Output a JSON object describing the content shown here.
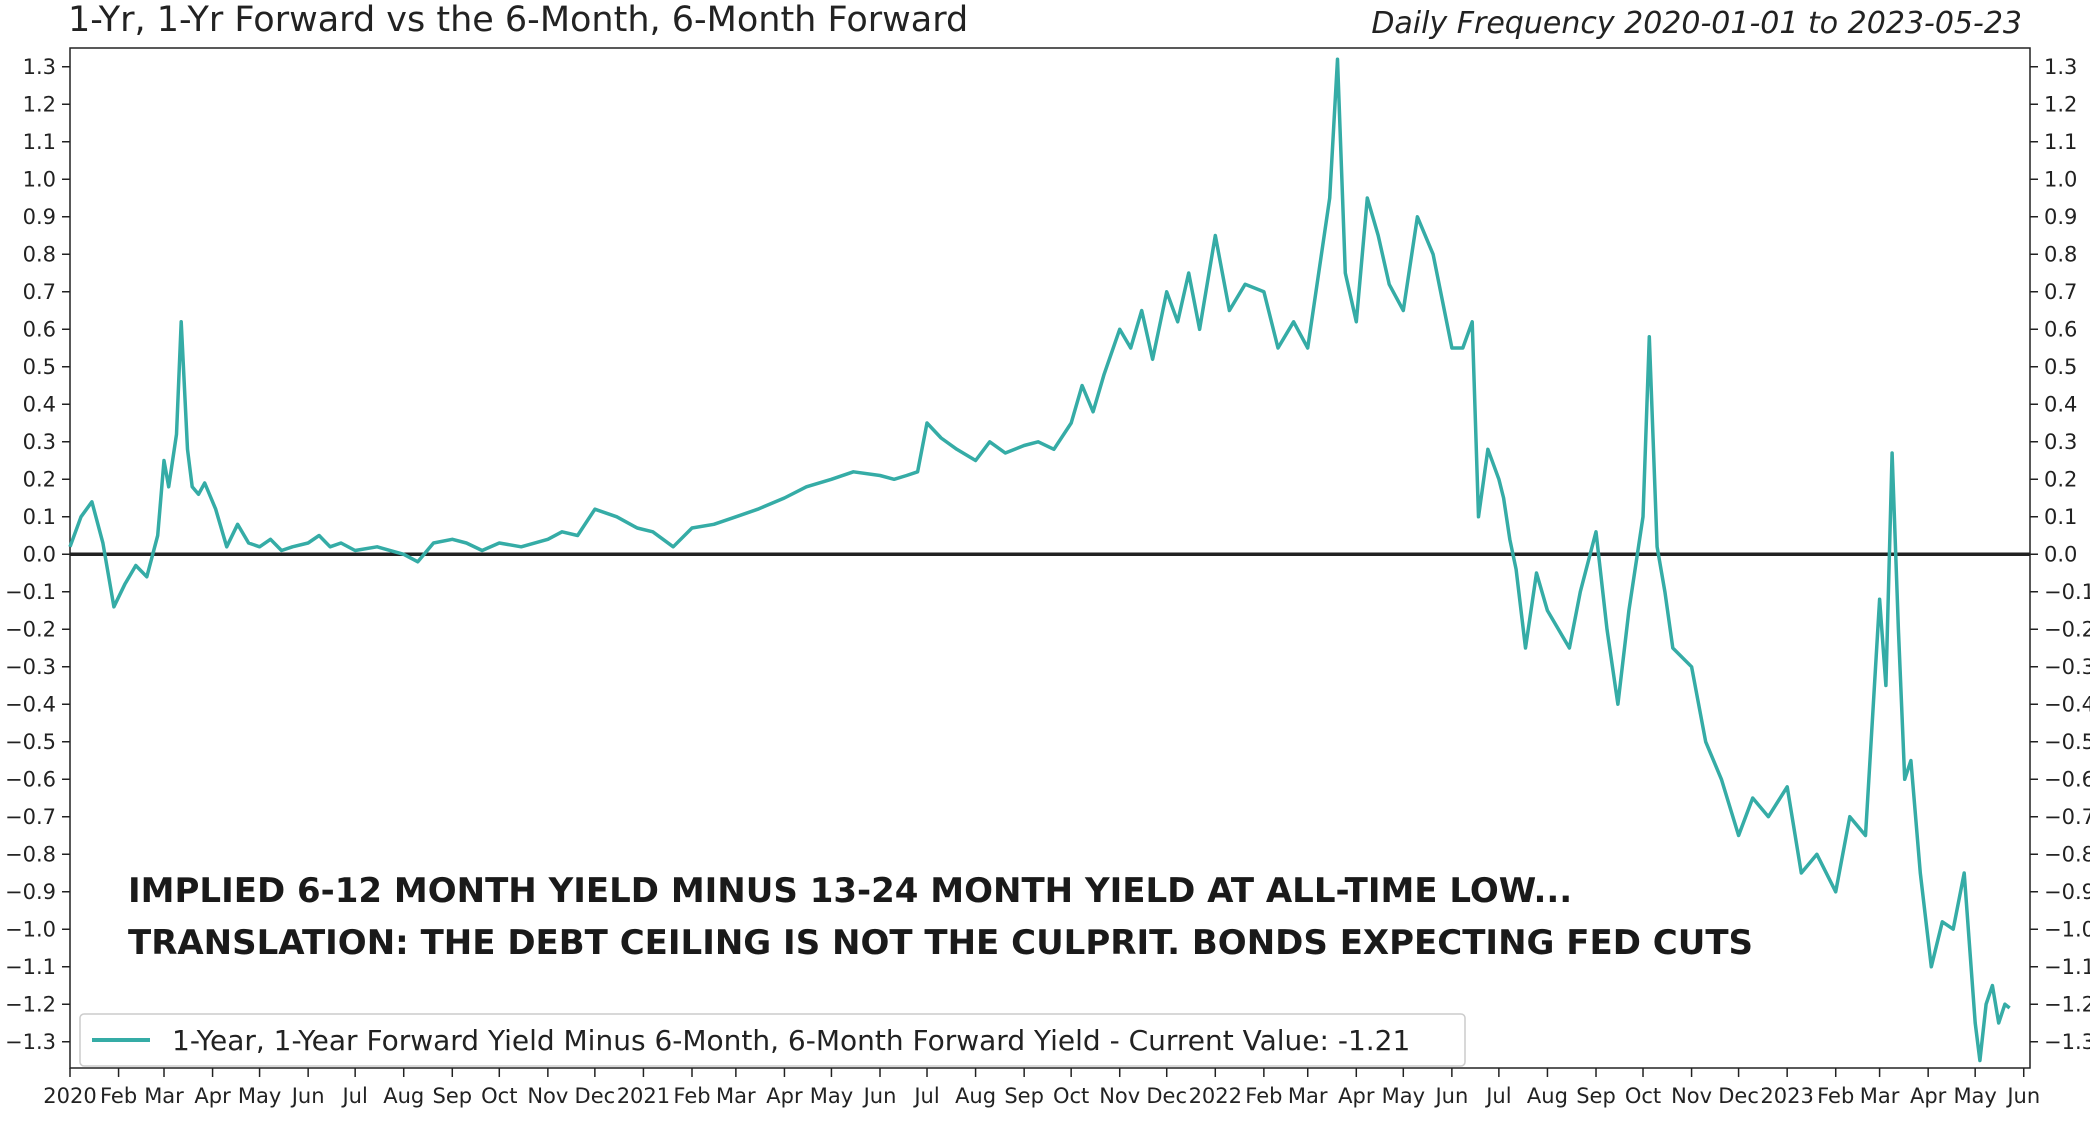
{
  "chart_data": {
    "type": "line",
    "title": "1-Yr, 1-Yr Forward vs the 6-Month, 6-Month Forward",
    "subtitle": "Daily Frequency 2020-01-01 to 2023-05-23",
    "ylim": [
      -1.37,
      1.35
    ],
    "yticks": [
      "1.3",
      "1.2",
      "1.1",
      "1.0",
      "0.9",
      "0.8",
      "0.7",
      "0.6",
      "0.5",
      "0.4",
      "0.3",
      "0.2",
      "0.1",
      "0.0",
      "−0.1",
      "−0.2",
      "−0.3",
      "−0.4",
      "−0.5",
      "−0.6",
      "−0.7",
      "−0.8",
      "−0.9",
      "−1.0",
      "−1.1",
      "−1.2",
      "−1.3"
    ],
    "ytick_values": [
      1.3,
      1.2,
      1.1,
      1.0,
      0.9,
      0.8,
      0.7,
      0.6,
      0.5,
      0.4,
      0.3,
      0.2,
      0.1,
      0.0,
      -0.1,
      -0.2,
      -0.3,
      -0.4,
      -0.5,
      -0.6,
      -0.7,
      -0.8,
      -0.9,
      -1.0,
      -1.1,
      -1.2,
      -1.3
    ],
    "xlim": [
      "2020-01-01",
      "2023-06-05"
    ],
    "xticks": [
      {
        "label": "2020",
        "date": "2020-01-01"
      },
      {
        "label": "Feb",
        "date": "2020-02-01"
      },
      {
        "label": "Mar",
        "date": "2020-03-01"
      },
      {
        "label": "Apr",
        "date": "2020-04-01"
      },
      {
        "label": "May",
        "date": "2020-05-01"
      },
      {
        "label": "Jun",
        "date": "2020-06-01"
      },
      {
        "label": "Jul",
        "date": "2020-07-01"
      },
      {
        "label": "Aug",
        "date": "2020-08-01"
      },
      {
        "label": "Sep",
        "date": "2020-09-01"
      },
      {
        "label": "Oct",
        "date": "2020-10-01"
      },
      {
        "label": "Nov",
        "date": "2020-11-01"
      },
      {
        "label": "Dec",
        "date": "2020-12-01"
      },
      {
        "label": "2021",
        "date": "2021-01-01"
      },
      {
        "label": "Feb",
        "date": "2021-02-01"
      },
      {
        "label": "Mar",
        "date": "2021-03-01"
      },
      {
        "label": "Apr",
        "date": "2021-04-01"
      },
      {
        "label": "May",
        "date": "2021-05-01"
      },
      {
        "label": "Jun",
        "date": "2021-06-01"
      },
      {
        "label": "Jul",
        "date": "2021-07-01"
      },
      {
        "label": "Aug",
        "date": "2021-08-01"
      },
      {
        "label": "Sep",
        "date": "2021-09-01"
      },
      {
        "label": "Oct",
        "date": "2021-10-01"
      },
      {
        "label": "Nov",
        "date": "2021-11-01"
      },
      {
        "label": "Dec",
        "date": "2021-12-01"
      },
      {
        "label": "2022",
        "date": "2022-01-01"
      },
      {
        "label": "Feb",
        "date": "2022-02-01"
      },
      {
        "label": "Mar",
        "date": "2022-03-01"
      },
      {
        "label": "Apr",
        "date": "2022-04-01"
      },
      {
        "label": "May",
        "date": "2022-05-01"
      },
      {
        "label": "Jun",
        "date": "2022-06-01"
      },
      {
        "label": "Jul",
        "date": "2022-07-01"
      },
      {
        "label": "Aug",
        "date": "2022-08-01"
      },
      {
        "label": "Sep",
        "date": "2022-09-01"
      },
      {
        "label": "Oct",
        "date": "2022-10-01"
      },
      {
        "label": "Nov",
        "date": "2022-11-01"
      },
      {
        "label": "Dec",
        "date": "2022-12-01"
      },
      {
        "label": "2023",
        "date": "2023-01-01"
      },
      {
        "label": "Feb",
        "date": "2023-02-01"
      },
      {
        "label": "Mar",
        "date": "2023-03-01"
      },
      {
        "label": "Apr",
        "date": "2023-04-01"
      },
      {
        "label": "May",
        "date": "2023-05-01"
      },
      {
        "label": "Jun",
        "date": "2023-06-01"
      }
    ],
    "grid": false,
    "legend_position": "bottom-left",
    "zero_line": 0.0,
    "annotations": [
      "IMPLIED 6-12 MONTH YIELD MINUS 13-24 MONTH YIELD AT ALL-TIME LOW...",
      "TRANSLATION:  THE DEBT CEILING IS NOT THE CULPRIT.  BONDS EXPECTING FED CUTS"
    ],
    "series": [
      {
        "name": "1-Year, 1-Year Forward Yield Minus 6-Month, 6-Month Forward Yield - Current Value: -1.21",
        "color": "#35aca6",
        "x": [
          "2020-01-01",
          "2020-01-08",
          "2020-01-15",
          "2020-01-22",
          "2020-01-29",
          "2020-02-05",
          "2020-02-12",
          "2020-02-19",
          "2020-02-26",
          "2020-03-01",
          "2020-03-04",
          "2020-03-09",
          "2020-03-12",
          "2020-03-16",
          "2020-03-19",
          "2020-03-23",
          "2020-03-27",
          "2020-04-03",
          "2020-04-10",
          "2020-04-17",
          "2020-04-24",
          "2020-05-01",
          "2020-05-08",
          "2020-05-15",
          "2020-05-22",
          "2020-06-01",
          "2020-06-08",
          "2020-06-15",
          "2020-06-22",
          "2020-07-01",
          "2020-07-15",
          "2020-08-01",
          "2020-08-10",
          "2020-08-20",
          "2020-09-01",
          "2020-09-10",
          "2020-09-20",
          "2020-10-01",
          "2020-10-15",
          "2020-11-01",
          "2020-11-10",
          "2020-11-20",
          "2020-12-01",
          "2020-12-15",
          "2020-12-28",
          "2021-01-07",
          "2021-01-20",
          "2021-02-01",
          "2021-02-15",
          "2021-03-01",
          "2021-03-15",
          "2021-04-01",
          "2021-04-15",
          "2021-05-01",
          "2021-05-15",
          "2021-06-01",
          "2021-06-10",
          "2021-06-18",
          "2021-06-25",
          "2021-07-01",
          "2021-07-10",
          "2021-07-20",
          "2021-08-01",
          "2021-08-10",
          "2021-08-20",
          "2021-09-01",
          "2021-09-10",
          "2021-09-20",
          "2021-10-01",
          "2021-10-08",
          "2021-10-15",
          "2021-10-22",
          "2021-11-01",
          "2021-11-08",
          "2021-11-15",
          "2021-11-22",
          "2021-12-01",
          "2021-12-08",
          "2021-12-15",
          "2021-12-22",
          "2022-01-01",
          "2022-01-10",
          "2022-01-20",
          "2022-02-01",
          "2022-02-10",
          "2022-02-20",
          "2022-03-01",
          "2022-03-08",
          "2022-03-15",
          "2022-03-20",
          "2022-03-25",
          "2022-04-01",
          "2022-04-08",
          "2022-04-15",
          "2022-04-22",
          "2022-05-01",
          "2022-05-10",
          "2022-05-20",
          "2022-06-01",
          "2022-06-08",
          "2022-06-14",
          "2022-06-18",
          "2022-06-24",
          "2022-07-01",
          "2022-07-04",
          "2022-07-08",
          "2022-07-12",
          "2022-07-18",
          "2022-07-25",
          "2022-08-01",
          "2022-08-08",
          "2022-08-15",
          "2022-08-22",
          "2022-09-01",
          "2022-09-08",
          "2022-09-15",
          "2022-09-22",
          "2022-10-01",
          "2022-10-05",
          "2022-10-10",
          "2022-10-15",
          "2022-10-20",
          "2022-11-01",
          "2022-11-10",
          "2022-11-20",
          "2022-12-01",
          "2022-12-10",
          "2022-12-20",
          "2023-01-01",
          "2023-01-10",
          "2023-01-20",
          "2023-02-01",
          "2023-02-10",
          "2023-02-20",
          "2023-03-01",
          "2023-03-05",
          "2023-03-09",
          "2023-03-13",
          "2023-03-17",
          "2023-03-21",
          "2023-03-27",
          "2023-04-03",
          "2023-04-10",
          "2023-04-17",
          "2023-04-24",
          "2023-05-01",
          "2023-05-04",
          "2023-05-08",
          "2023-05-12",
          "2023-05-16",
          "2023-05-20",
          "2023-05-23"
        ],
        "values": [
          0.02,
          0.1,
          0.14,
          0.03,
          -0.14,
          -0.08,
          -0.03,
          -0.06,
          0.05,
          0.25,
          0.18,
          0.32,
          0.62,
          0.28,
          0.18,
          0.16,
          0.19,
          0.12,
          0.02,
          0.08,
          0.03,
          0.02,
          0.04,
          0.01,
          0.02,
          0.03,
          0.05,
          0.02,
          0.03,
          0.01,
          0.02,
          0.0,
          -0.02,
          0.03,
          0.04,
          0.03,
          0.01,
          0.03,
          0.02,
          0.04,
          0.06,
          0.05,
          0.12,
          0.1,
          0.07,
          0.06,
          0.02,
          0.07,
          0.08,
          0.1,
          0.12,
          0.15,
          0.18,
          0.2,
          0.22,
          0.21,
          0.2,
          0.21,
          0.22,
          0.35,
          0.31,
          0.28,
          0.25,
          0.3,
          0.27,
          0.29,
          0.3,
          0.28,
          0.35,
          0.45,
          0.38,
          0.48,
          0.6,
          0.55,
          0.65,
          0.52,
          0.7,
          0.62,
          0.75,
          0.6,
          0.85,
          0.65,
          0.72,
          0.7,
          0.55,
          0.62,
          0.55,
          0.75,
          0.95,
          1.32,
          0.75,
          0.62,
          0.95,
          0.85,
          0.72,
          0.65,
          0.9,
          0.8,
          0.55,
          0.55,
          0.62,
          0.1,
          0.28,
          0.2,
          0.15,
          0.04,
          -0.04,
          -0.25,
          -0.05,
          -0.15,
          -0.2,
          -0.25,
          -0.1,
          0.06,
          -0.2,
          -0.4,
          -0.15,
          0.1,
          0.58,
          0.02,
          -0.1,
          -0.25,
          -0.3,
          -0.5,
          -0.6,
          -0.75,
          -0.65,
          -0.7,
          -0.62,
          -0.85,
          -0.8,
          -0.9,
          -0.7,
          -0.75,
          -0.12,
          -0.35,
          0.27,
          -0.2,
          -0.6,
          -0.55,
          -0.85,
          -1.1,
          -0.98,
          -1.0,
          -0.85,
          -1.25,
          -1.35,
          -1.2,
          -1.15,
          -1.25,
          -1.2,
          -1.21
        ]
      }
    ]
  }
}
